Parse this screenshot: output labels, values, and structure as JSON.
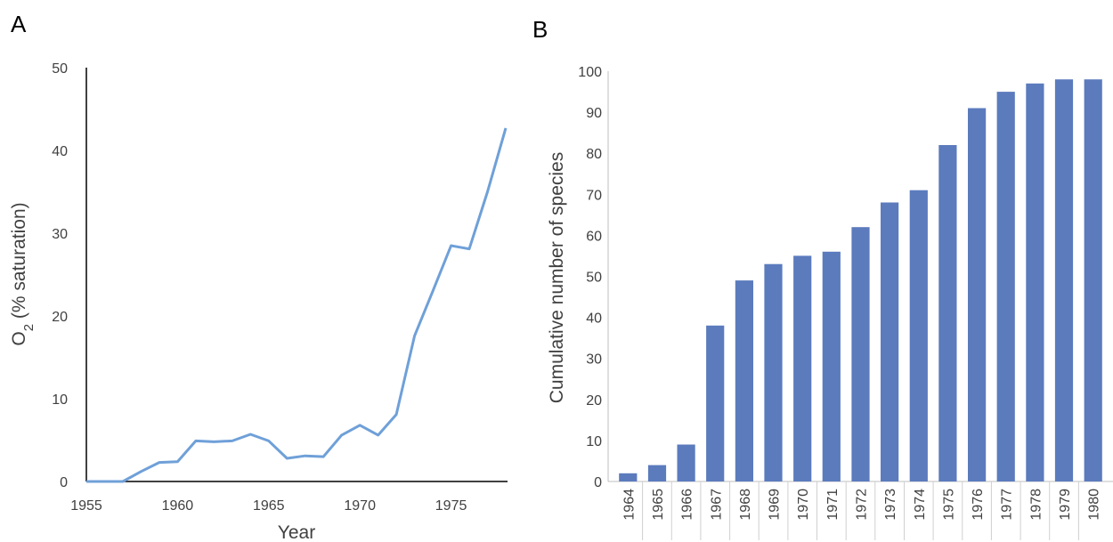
{
  "chart_data": [
    {
      "type": "line",
      "panel_label": "A",
      "xlabel": "Year",
      "ylabel_main": "O",
      "ylabel_sub": "2",
      "ylabel_rest": " (%  saturation)",
      "xlim": [
        1955,
        1978
      ],
      "ylim": [
        0,
        50
      ],
      "xticks": [
        1955,
        1960,
        1965,
        1970,
        1975
      ],
      "yticks": [
        0,
        10,
        20,
        30,
        40,
        50
      ],
      "x": [
        1955,
        1956,
        1957,
        1958,
        1959,
        1960,
        1961,
        1962,
        1963,
        1964,
        1965,
        1966,
        1967,
        1968,
        1969,
        1970,
        1971,
        1972,
        1973,
        1974,
        1975,
        1976,
        1977,
        1978
      ],
      "y": [
        0,
        0,
        0,
        1.2,
        2.3,
        2.4,
        4.9,
        4.8,
        4.9,
        5.7,
        4.9,
        2.8,
        3.1,
        3.0,
        5.6,
        6.8,
        5.6,
        8.1,
        17.6,
        23.0,
        28.5,
        28.1,
        35.0,
        42.7
      ],
      "color": "#6fa0d8",
      "grid": false
    },
    {
      "type": "bar",
      "panel_label": "B",
      "xlabel": "",
      "ylabel": "Cumulative number of species",
      "ylim": [
        0,
        100
      ],
      "yticks": [
        0,
        10,
        20,
        30,
        40,
        50,
        60,
        70,
        80,
        90,
        100
      ],
      "categories": [
        "1964",
        "1965",
        "1966",
        "1967",
        "1968",
        "1969",
        "1970",
        "1971",
        "1972",
        "1973",
        "1974",
        "1975",
        "1976",
        "1977",
        "1978",
        "1979",
        "1980"
      ],
      "values": [
        2,
        4,
        9,
        38,
        49,
        53,
        55,
        56,
        62,
        68,
        71,
        82,
        91,
        95,
        97,
        98,
        98
      ],
      "color": "#5b7bbd",
      "grid": false
    }
  ]
}
